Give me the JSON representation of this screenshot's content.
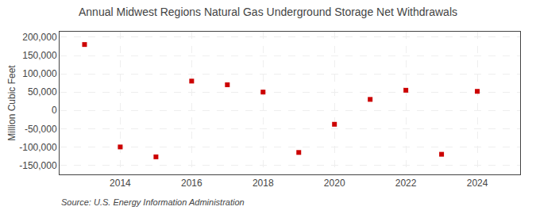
{
  "chart_data": {
    "type": "scatter",
    "title": "Annual Midwest Regions Natural Gas Underground Storage Net Withdrawals",
    "ylabel": "Million Cubic Feet",
    "annotations": [
      "Source: U.S. Energy Information Administration"
    ],
    "x": [
      2013,
      2014,
      2015,
      2016,
      2017,
      2018,
      2019,
      2020,
      2021,
      2022,
      2023,
      2024
    ],
    "values": [
      180000,
      -100000,
      -127000,
      80000,
      70000,
      50000,
      -115000,
      -38000,
      30000,
      55000,
      -120000,
      52000
    ],
    "color": "#cc0000",
    "marker": "square",
    "xlim": [
      2012.3,
      2025.2
    ],
    "xticks": [
      2014,
      2016,
      2018,
      2020,
      2022,
      2024
    ],
    "ylim": [
      -175000,
      215000
    ],
    "yticks": [
      {
        "value": -150000,
        "label": "-150,000"
      },
      {
        "value": -100000,
        "label": "-100,000"
      },
      {
        "value": -50000,
        "label": "-50,000"
      },
      0,
      {
        "value": 50000,
        "label": "50,000"
      },
      {
        "value": 100000,
        "label": "100,000"
      },
      {
        "value": 150000,
        "label": "150,000"
      },
      {
        "value": 200000,
        "label": "200,000"
      }
    ],
    "grid": true
  }
}
